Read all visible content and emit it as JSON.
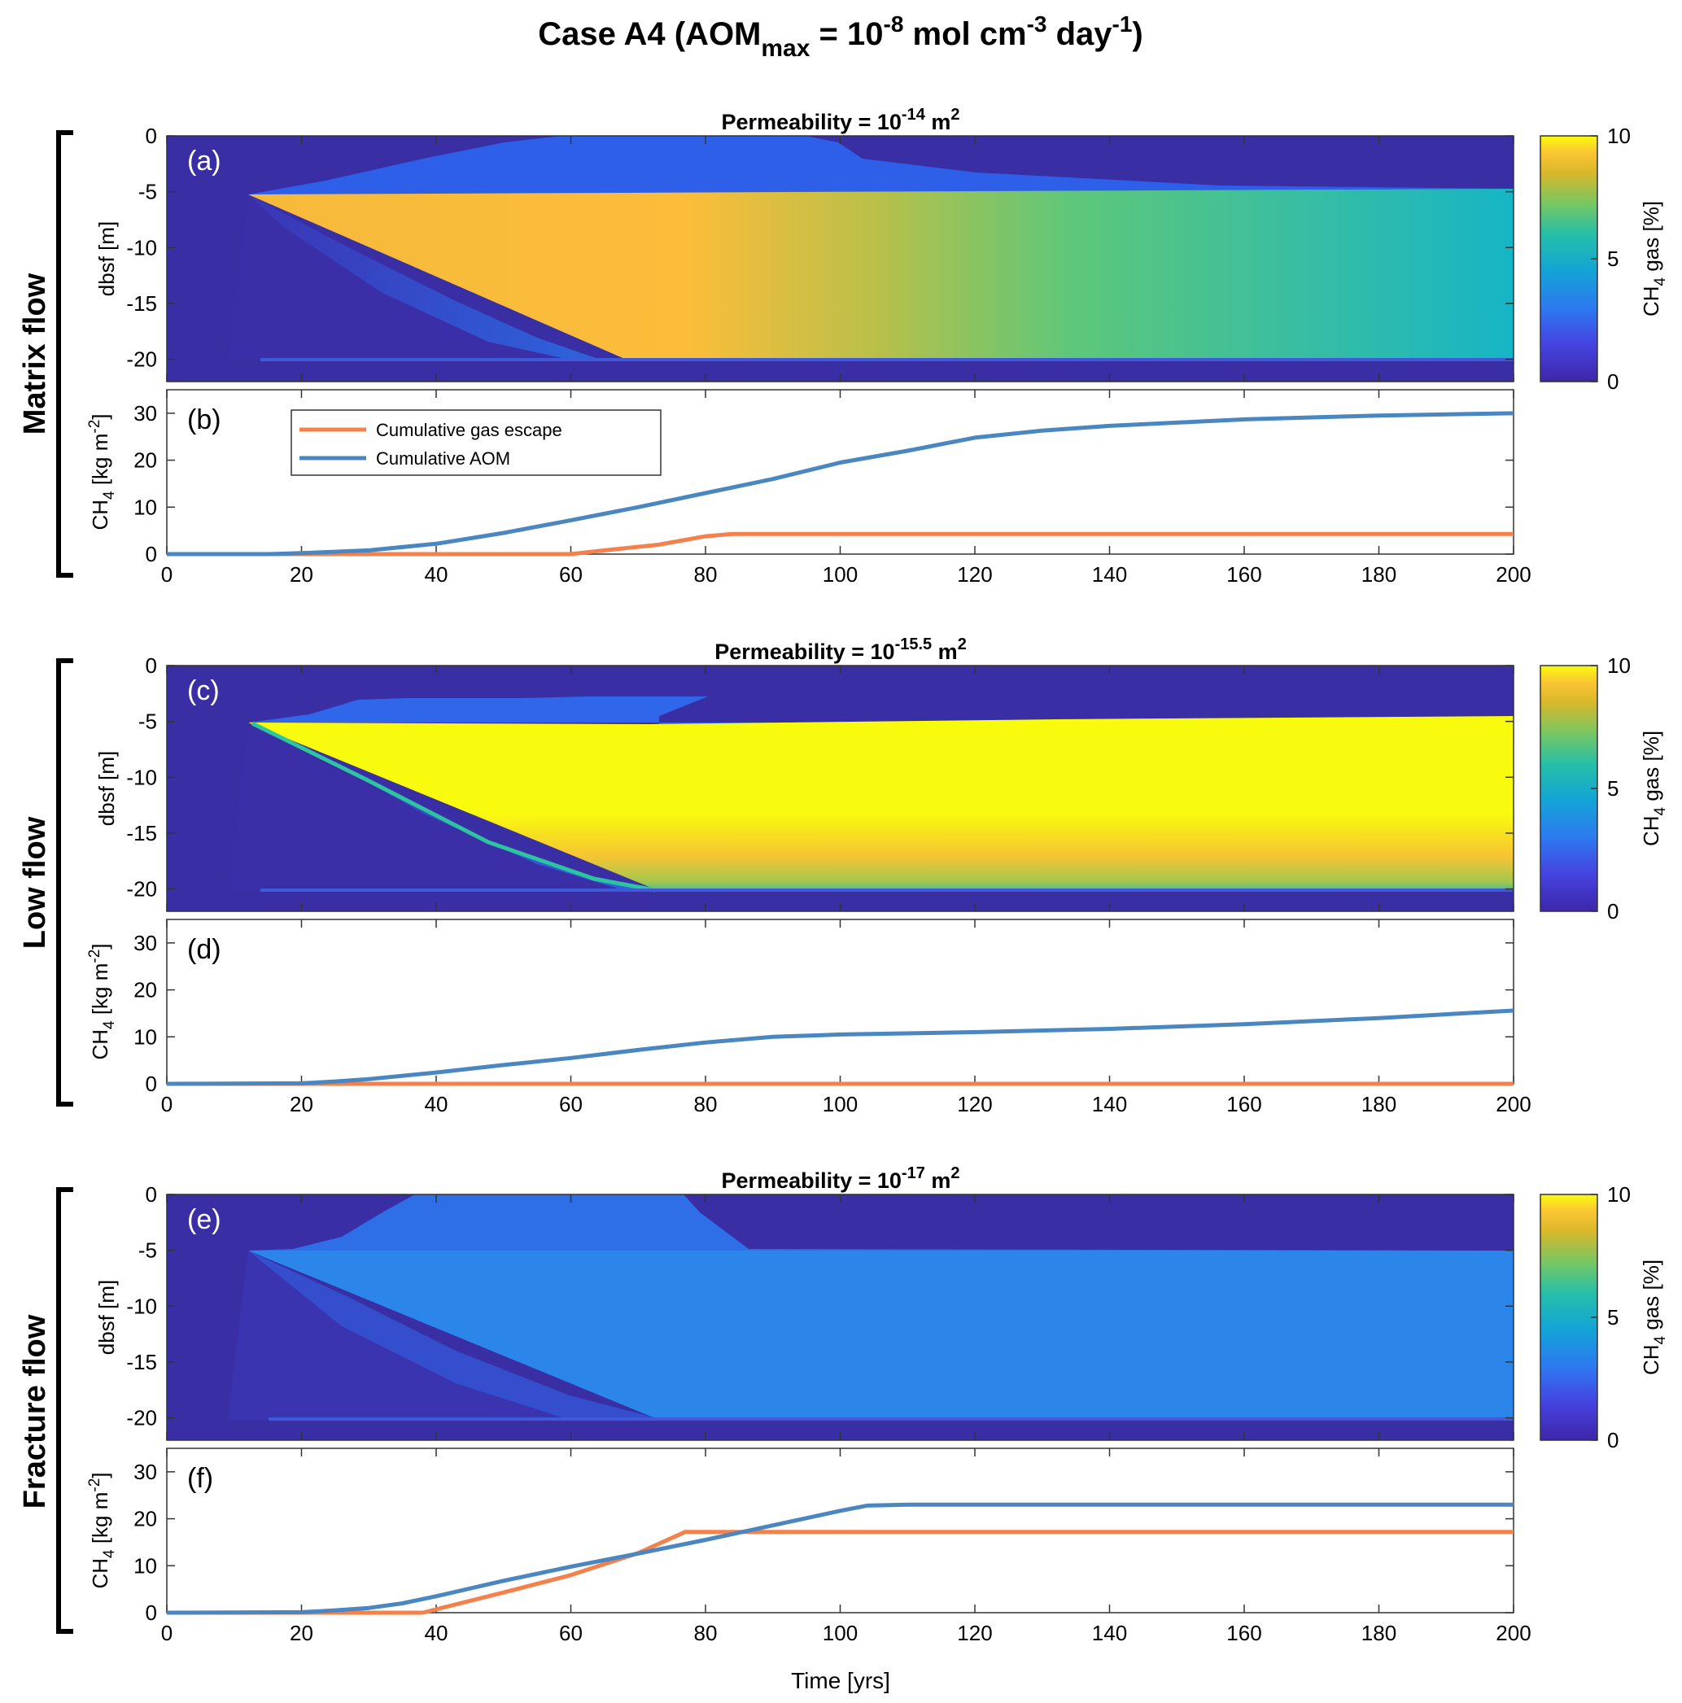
{
  "figure": {
    "title_main": "Case A4 (AOM",
    "title_sub": "max",
    "title_mid": " = 10",
    "title_sup1": "-8",
    "title_mid2": " mol cm",
    "title_sup2": "-3",
    "title_mid3": " day",
    "title_sup3": "-1",
    "title_end": ")"
  },
  "row_labels": [
    "Matrix flow",
    "Low flow",
    "Fracture flow"
  ],
  "xlabel": "Time [yrs]",
  "colors": {
    "background_gas": "#3a2ea5",
    "aom_line": "#4a86c0",
    "escape_line": "#f4804c"
  },
  "chart_data": [
    {
      "type": "heatmap",
      "panel_label": "(a)",
      "title_prefix": "Permeability = 10",
      "title_exp": "-14",
      "title_suffix": " m",
      "title_unit_exp": "2",
      "ylabel": "dbsf [m]",
      "x_range": [
        0,
        200
      ],
      "y_range": [
        -22,
        0
      ],
      "x_ticks": [
        "0",
        "20",
        "40",
        "60",
        "80",
        "100",
        "120",
        "140",
        "160",
        "180",
        "200"
      ],
      "y_ticks": [
        "0",
        "-5",
        "-10",
        "-15",
        "-20"
      ],
      "colorbar": {
        "label_pre": "CH",
        "label_sub": "4",
        "label_post": " gas [%]",
        "ticks": [
          "0",
          "5",
          "10"
        ],
        "range": [
          0,
          10
        ],
        "colormap": "parula"
      },
      "description_values": {
        "gas_zone_top_m": -5,
        "gas_zone_bottom_m": -20,
        "peak_percent": 8.5,
        "late_percent": 5
      }
    },
    {
      "type": "line",
      "panel_label": "(b)",
      "ylabel_pre": "CH",
      "ylabel_sub": "4",
      "ylabel_mid": " [kg m",
      "ylabel_exp": "-2",
      "ylabel_post": "]",
      "x_range": [
        0,
        200
      ],
      "y_range": [
        0,
        35
      ],
      "x_ticks": [
        "0",
        "20",
        "40",
        "60",
        "80",
        "100",
        "120",
        "140",
        "160",
        "180",
        "200"
      ],
      "y_ticks": [
        "0",
        "10",
        "20",
        "30"
      ],
      "legend": [
        "Cumulative gas escape",
        "Cumulative AOM"
      ],
      "series": [
        {
          "name": "Cumulative gas escape",
          "x": [
            0,
            60,
            65,
            73,
            80,
            84,
            100,
            200
          ],
          "y": [
            0,
            0,
            0.8,
            2,
            3.8,
            4.3,
            4.3,
            4.3
          ]
        },
        {
          "name": "Cumulative AOM",
          "x": [
            0,
            15,
            20,
            30,
            40,
            50,
            60,
            70,
            80,
            90,
            100,
            110,
            120,
            130,
            140,
            160,
            180,
            200
          ],
          "y": [
            0,
            0,
            0.2,
            0.8,
            2.2,
            4.5,
            7.2,
            10,
            13,
            16,
            19.5,
            22,
            24.8,
            26.3,
            27.3,
            28.7,
            29.5,
            30
          ]
        }
      ]
    },
    {
      "type": "heatmap",
      "panel_label": "(c)",
      "title_prefix": "Permeability = 10",
      "title_exp": "-15.5",
      "title_suffix": " m",
      "title_unit_exp": "2",
      "ylabel": "dbsf [m]",
      "x_range": [
        0,
        200
      ],
      "y_range": [
        -22,
        0
      ],
      "x_ticks": [
        "0",
        "20",
        "40",
        "60",
        "80",
        "100",
        "120",
        "140",
        "160",
        "180",
        "200"
      ],
      "y_ticks": [
        "0",
        "-5",
        "-10",
        "-15",
        "-20"
      ],
      "colorbar": {
        "label_pre": "CH",
        "label_sub": "4",
        "label_post": " gas [%]",
        "ticks": [
          "0",
          "5",
          "10"
        ],
        "range": [
          0,
          10
        ],
        "colormap": "parula"
      }
    },
    {
      "type": "line",
      "panel_label": "(d)",
      "ylabel_pre": "CH",
      "ylabel_sub": "4",
      "ylabel_mid": " [kg m",
      "ylabel_exp": "-2",
      "ylabel_post": "]",
      "x_range": [
        0,
        200
      ],
      "y_range": [
        0,
        35
      ],
      "x_ticks": [
        "0",
        "20",
        "40",
        "60",
        "80",
        "100",
        "120",
        "140",
        "160",
        "180",
        "200"
      ],
      "y_ticks": [
        "0",
        "10",
        "20",
        "30"
      ],
      "series": [
        {
          "name": "Cumulative gas escape",
          "x": [
            0,
            200
          ],
          "y": [
            0,
            0
          ]
        },
        {
          "name": "Cumulative AOM",
          "x": [
            0,
            20,
            25,
            30,
            40,
            50,
            60,
            70,
            80,
            90,
            100,
            120,
            140,
            160,
            180,
            200
          ],
          "y": [
            0,
            0.1,
            0.5,
            1,
            2.4,
            4,
            5.5,
            7.2,
            8.8,
            10,
            10.5,
            11,
            11.7,
            12.7,
            14,
            15.6
          ]
        }
      ]
    },
    {
      "type": "heatmap",
      "panel_label": "(e)",
      "title_prefix": "Permeability = 10",
      "title_exp": "-17",
      "title_suffix": " m",
      "title_unit_exp": "2",
      "ylabel": "dbsf [m]",
      "x_range": [
        0,
        200
      ],
      "y_range": [
        -22,
        0
      ],
      "x_ticks": [
        "0",
        "20",
        "40",
        "60",
        "80",
        "100",
        "120",
        "140",
        "160",
        "180",
        "200"
      ],
      "y_ticks": [
        "0",
        "-5",
        "-10",
        "-15",
        "-20"
      ],
      "colorbar": {
        "label_pre": "CH",
        "label_sub": "4",
        "label_post": " gas [%]",
        "ticks": [
          "0",
          "5",
          "10"
        ],
        "range": [
          0,
          10
        ],
        "colormap": "parula"
      }
    },
    {
      "type": "line",
      "panel_label": "(f)",
      "ylabel_pre": "CH",
      "ylabel_sub": "4",
      "ylabel_mid": " [kg m",
      "ylabel_exp": "-2",
      "ylabel_post": "]",
      "x_range": [
        0,
        200
      ],
      "y_range": [
        0,
        35
      ],
      "x_ticks": [
        "0",
        "20",
        "40",
        "60",
        "80",
        "100",
        "120",
        "140",
        "160",
        "180",
        "200"
      ],
      "y_ticks": [
        "0",
        "10",
        "20",
        "30"
      ],
      "series": [
        {
          "name": "Cumulative gas escape",
          "x": [
            0,
            37,
            38,
            50,
            60,
            70,
            77,
            80,
            100,
            200
          ],
          "y": [
            0,
            0,
            0,
            4.3,
            8,
            12.7,
            17.2,
            17.2,
            17.2,
            17.2
          ]
        },
        {
          "name": "Cumulative AOM",
          "x": [
            0,
            20,
            25,
            30,
            35,
            40,
            50,
            60,
            70,
            80,
            90,
            100,
            104,
            110,
            140,
            200
          ],
          "y": [
            0,
            0.1,
            0.5,
            1,
            2,
            3.5,
            6.8,
            9.8,
            12.6,
            15.5,
            18.6,
            21.7,
            22.8,
            23,
            23,
            23
          ]
        }
      ]
    }
  ]
}
